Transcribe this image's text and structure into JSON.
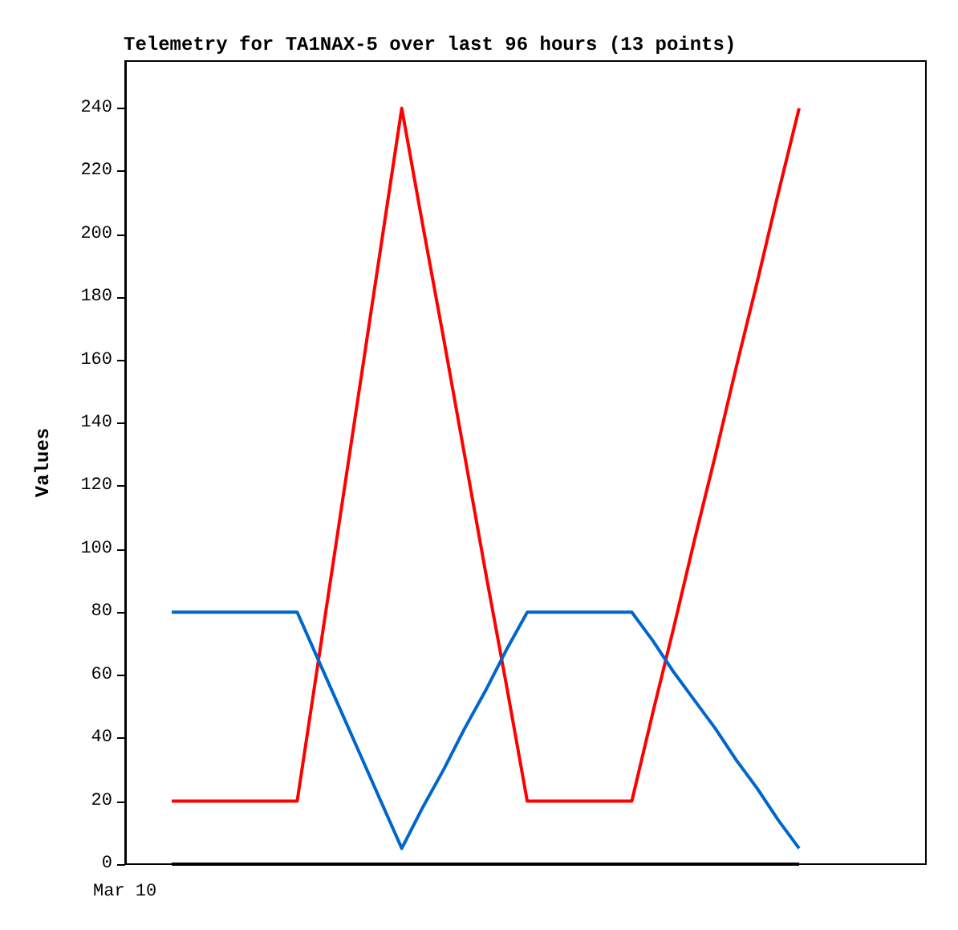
{
  "chart_data": {
    "type": "line",
    "title": "Telemetry for TA1NAX-5 over last 96 hours (13 points)",
    "ylabel": "Values",
    "categories": [
      null,
      null,
      null,
      null,
      null,
      null,
      null,
      null,
      null,
      null,
      null,
      null,
      null,
      null,
      null,
      null,
      null,
      null,
      null,
      null,
      null,
      null,
      null,
      null,
      null,
      null,
      null,
      null,
      null,
      null,
      null
    ],
    "series": [
      {
        "color": "#ff0000",
        "values": [
          20,
          20,
          20,
          20,
          20,
          20,
          20,
          64,
          108,
          152,
          196,
          240,
          203,
          167,
          130,
          93,
          57,
          20,
          20,
          20,
          20,
          20,
          20,
          48,
          75,
          103,
          130,
          158,
          185,
          213,
          240
        ]
      },
      {
        "color": "#0066cc",
        "values": [
          80,
          80,
          80,
          80,
          80,
          80,
          80,
          65,
          50,
          35,
          20,
          5,
          18,
          30,
          43,
          55,
          68,
          80,
          80,
          80,
          80,
          80,
          80,
          71,
          61,
          52,
          43,
          33,
          24,
          14,
          5
        ]
      },
      {
        "color": "#000000",
        "values": [
          0,
          0,
          0,
          0,
          0,
          0,
          0,
          0,
          0,
          0,
          0,
          0,
          0,
          0,
          0,
          0,
          0,
          0,
          0,
          0,
          0,
          0,
          0,
          0,
          0,
          0,
          0,
          0,
          0,
          0,
          0
        ]
      }
    ],
    "annotations": [
      "Mar 10"
    ],
    "ylim": [
      0,
      255
    ],
    "yticks": [
      0,
      20,
      40,
      60,
      80,
      100,
      120,
      140,
      160,
      180,
      200,
      220,
      240
    ],
    "grid": false,
    "marker": "none",
    "line_style": "solid"
  }
}
